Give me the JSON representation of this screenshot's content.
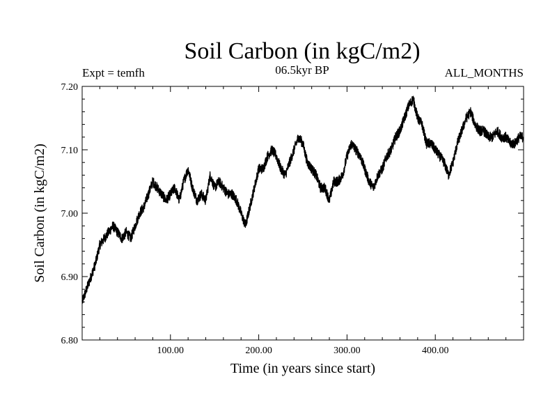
{
  "chart_data": {
    "type": "line",
    "title": "Soil Carbon (in kgC/m2)",
    "left_caption": "Expt = temfh",
    "center_caption": "06.5kyr BP",
    "right_caption": "ALL_MONTHS",
    "xlabel": "Time (in years since start)",
    "ylabel": "Soil Carbon (in kgC/m2)",
    "xlim": [
      0,
      500
    ],
    "ylim": [
      6.8,
      7.2
    ],
    "xticks": [
      100,
      200,
      300,
      400
    ],
    "xtick_labels": [
      "100.00",
      "200.00",
      "300.00",
      "400.00"
    ],
    "yticks": [
      6.8,
      6.9,
      7.0,
      7.1,
      7.2
    ],
    "ytick_labels": [
      "6.80",
      "6.90",
      "7.00",
      "7.10",
      "7.20"
    ],
    "grid": false,
    "line_color": "#000000",
    "series": [
      {
        "name": "soil carbon",
        "x": [
          0,
          5,
          10,
          15,
          20,
          25,
          30,
          35,
          40,
          45,
          50,
          55,
          60,
          65,
          70,
          75,
          80,
          85,
          90,
          95,
          100,
          105,
          110,
          115,
          120,
          125,
          130,
          135,
          140,
          145,
          150,
          155,
          160,
          165,
          170,
          175,
          180,
          185,
          190,
          195,
          200,
          205,
          210,
          215,
          220,
          225,
          230,
          235,
          240,
          245,
          250,
          255,
          260,
          265,
          270,
          275,
          280,
          285,
          290,
          295,
          300,
          305,
          310,
          315,
          320,
          325,
          330,
          335,
          340,
          345,
          350,
          355,
          360,
          365,
          370,
          375,
          380,
          385,
          390,
          395,
          400,
          405,
          410,
          415,
          420,
          425,
          430,
          435,
          440,
          445,
          450,
          455,
          460,
          465,
          470,
          475,
          480,
          485,
          490,
          495,
          500
        ],
        "values": [
          6.86,
          6.88,
          6.9,
          6.92,
          6.95,
          6.96,
          6.97,
          6.98,
          6.97,
          6.96,
          6.97,
          6.96,
          6.98,
          7.0,
          7.01,
          7.03,
          7.05,
          7.04,
          7.03,
          7.02,
          7.03,
          7.04,
          7.02,
          7.05,
          7.07,
          7.04,
          7.02,
          7.03,
          7.02,
          7.06,
          7.04,
          7.05,
          7.04,
          7.03,
          7.03,
          7.02,
          7.0,
          6.98,
          7.01,
          7.04,
          7.07,
          7.07,
          7.09,
          7.1,
          7.09,
          7.07,
          7.06,
          7.08,
          7.1,
          7.12,
          7.11,
          7.08,
          7.07,
          7.06,
          7.04,
          7.04,
          7.02,
          7.05,
          7.05,
          7.06,
          7.09,
          7.11,
          7.1,
          7.09,
          7.07,
          7.05,
          7.04,
          7.06,
          7.07,
          7.09,
          7.1,
          7.12,
          7.13,
          7.15,
          7.17,
          7.18,
          7.15,
          7.14,
          7.11,
          7.11,
          7.1,
          7.09,
          7.08,
          7.06,
          7.08,
          7.11,
          7.13,
          7.15,
          7.16,
          7.14,
          7.13,
          7.13,
          7.12,
          7.12,
          7.13,
          7.12,
          7.12,
          7.11,
          7.11,
          7.12,
          7.12
        ]
      }
    ]
  }
}
